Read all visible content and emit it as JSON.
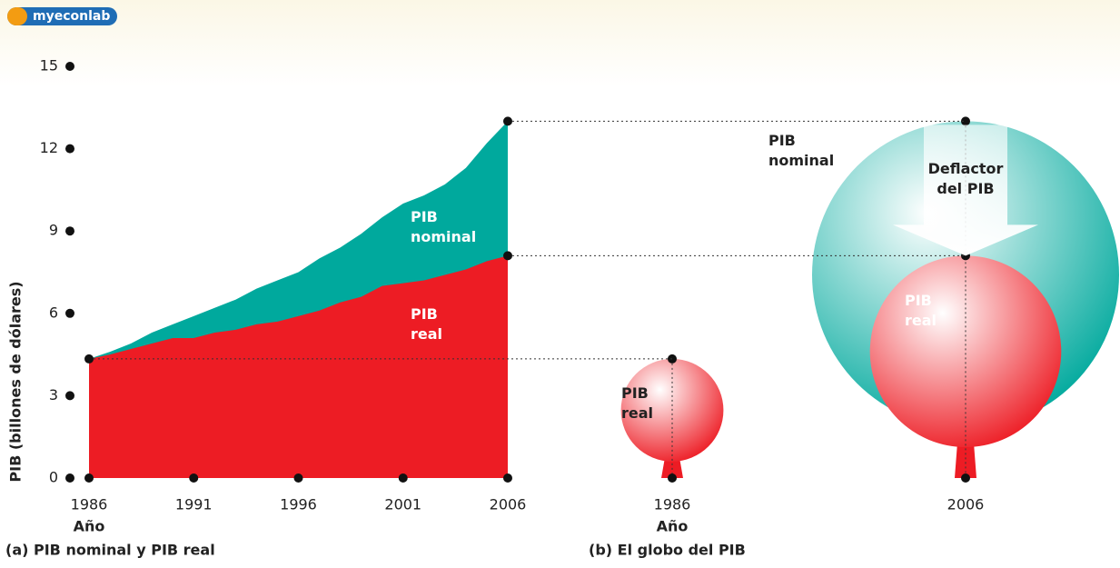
{
  "logo": "myeconlab",
  "chart_data": [
    {
      "type": "area",
      "title": "(a) PIB nominal y PIB real",
      "xlabel": "Año",
      "ylabel": "PIB (billones de dólares)",
      "x": [
        1986,
        1987,
        1988,
        1989,
        1990,
        1991,
        1992,
        1993,
        1994,
        1995,
        1996,
        1997,
        1998,
        1999,
        2000,
        2001,
        2002,
        2003,
        2004,
        2005,
        2006
      ],
      "series": [
        {
          "name": "PIB nominal",
          "color": "#00a99d",
          "values": [
            4.34,
            4.6,
            4.9,
            5.3,
            5.6,
            5.9,
            6.2,
            6.5,
            6.9,
            7.2,
            7.5,
            8.0,
            8.4,
            8.9,
            9.5,
            10.0,
            10.3,
            10.7,
            11.3,
            12.2,
            13.0
          ]
        },
        {
          "name": "PIB real",
          "color": "#ed1c24",
          "values": [
            4.34,
            4.5,
            4.7,
            4.9,
            5.1,
            5.1,
            5.3,
            5.4,
            5.6,
            5.7,
            5.9,
            6.1,
            6.4,
            6.6,
            7.0,
            7.1,
            7.2,
            7.4,
            7.6,
            7.9,
            8.1
          ]
        }
      ],
      "xlim": [
        1986,
        2006
      ],
      "xticks": [
        1986,
        1991,
        1996,
        2001,
        2006
      ],
      "ylim": [
        0,
        15
      ],
      "yticks": [
        0,
        3,
        6,
        9,
        12,
        15
      ]
    },
    {
      "type": "balloon",
      "title": "(b) El globo del PIB",
      "xlabel": "Año",
      "categories": [
        "1986",
        "2006"
      ],
      "series": [
        {
          "name": "PIB real",
          "color": "#ed1c24",
          "values": [
            4.34,
            8.1
          ]
        },
        {
          "name": "PIB nominal",
          "color": "#00a99d",
          "values": [
            null,
            13.0
          ]
        }
      ],
      "annotation": "Deflactor del PIB"
    }
  ]
}
